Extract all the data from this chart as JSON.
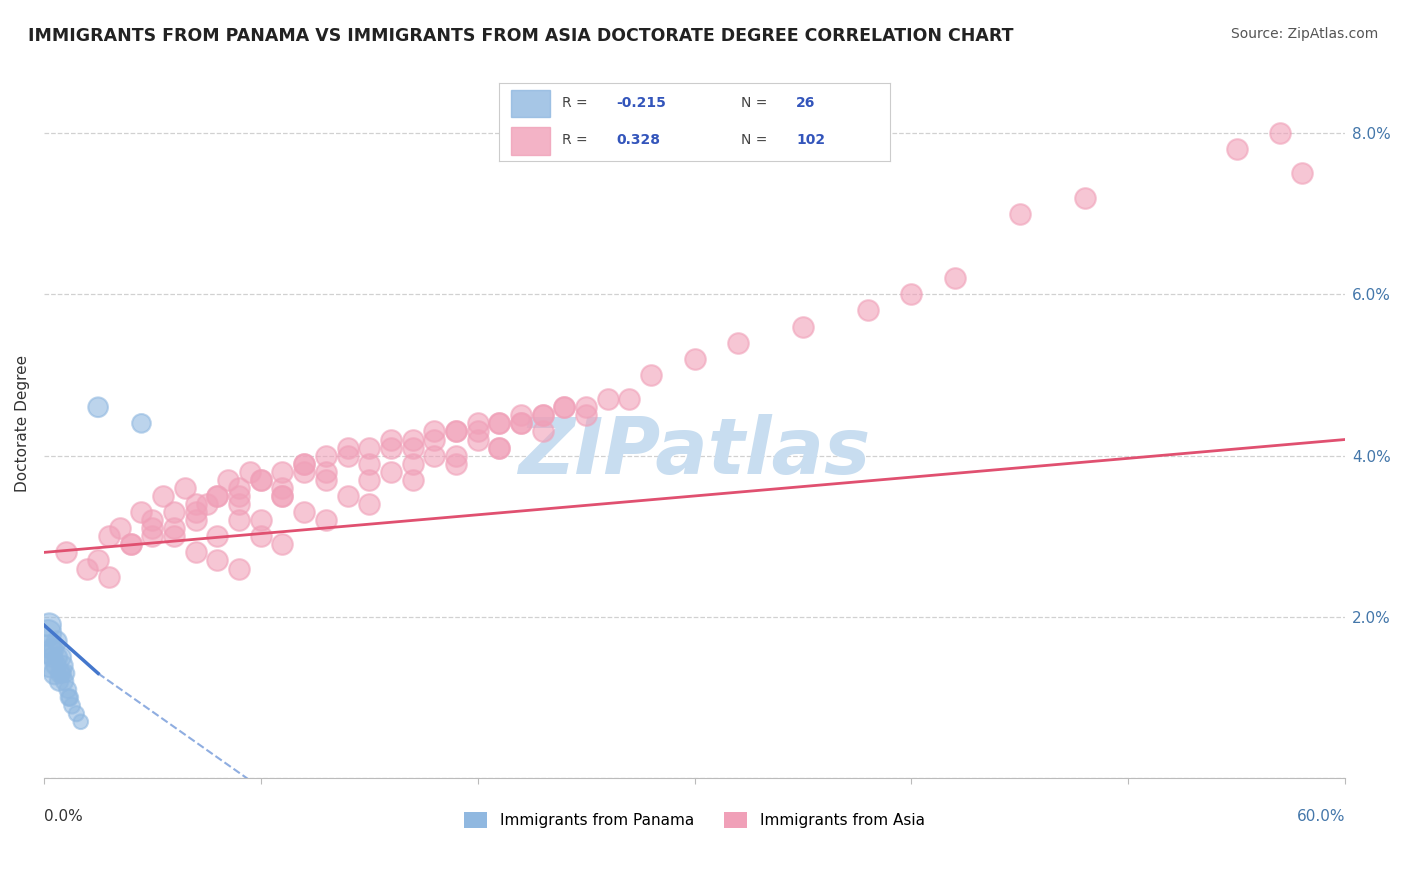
{
  "title": "IMMIGRANTS FROM PANAMA VS IMMIGRANTS FROM ASIA DOCTORATE DEGREE CORRELATION CHART",
  "source": "Source: ZipAtlas.com",
  "ylabel": "Doctorate Degree",
  "y_ticks": [
    0.0,
    2.0,
    4.0,
    6.0,
    8.0
  ],
  "y_tick_labels": [
    "",
    "2.0%",
    "4.0%",
    "6.0%",
    "8.0%"
  ],
  "x_range": [
    0.0,
    60.0
  ],
  "y_range": [
    0.0,
    8.8
  ],
  "legend_r_panama": "-0.215",
  "legend_n_panama": "26",
  "legend_r_asia": "0.328",
  "legend_n_asia": "102",
  "panama_color": "#90b8e0",
  "asia_color": "#f0a0b8",
  "panama_line_color": "#4477cc",
  "asia_line_color": "#e05070",
  "watermark_color": "#c8ddf0",
  "background_color": "#ffffff",
  "panama_x": [
    0.15,
    0.3,
    0.4,
    0.5,
    0.6,
    0.7,
    0.8,
    0.9,
    1.0,
    1.1,
    1.2,
    1.3,
    1.5,
    1.7,
    0.2,
    0.35,
    0.55,
    0.75,
    0.95,
    1.15,
    0.25,
    0.45,
    0.65,
    0.85,
    2.5,
    4.5
  ],
  "panama_y": [
    1.6,
    1.4,
    1.5,
    1.3,
    1.7,
    1.2,
    1.5,
    1.4,
    1.3,
    1.1,
    1.0,
    0.9,
    0.8,
    0.7,
    1.8,
    1.6,
    1.4,
    1.3,
    1.2,
    1.0,
    1.9,
    1.6,
    1.5,
    1.3,
    4.6,
    4.4
  ],
  "panama_sizes": [
    400,
    300,
    200,
    250,
    200,
    180,
    200,
    180,
    160,
    150,
    140,
    130,
    120,
    110,
    350,
    220,
    200,
    180,
    160,
    140,
    280,
    200,
    180,
    160,
    200,
    180
  ],
  "asia_x": [
    1.0,
    2.0,
    3.0,
    4.0,
    5.0,
    6.0,
    7.0,
    8.0,
    9.0,
    10.0,
    2.5,
    3.5,
    4.5,
    5.5,
    6.5,
    7.5,
    8.5,
    9.5,
    11.0,
    12.0,
    3.0,
    5.0,
    7.0,
    9.0,
    11.0,
    13.0,
    15.0,
    17.0,
    19.0,
    21.0,
    4.0,
    6.0,
    8.0,
    10.0,
    12.0,
    14.0,
    16.0,
    18.0,
    20.0,
    22.0,
    5.0,
    7.0,
    9.0,
    11.0,
    13.0,
    15.0,
    17.0,
    19.0,
    21.0,
    23.0,
    6.0,
    8.0,
    10.0,
    12.0,
    14.0,
    16.0,
    18.0,
    20.0,
    22.0,
    24.0,
    7.0,
    9.0,
    11.0,
    13.0,
    15.0,
    17.0,
    19.0,
    21.0,
    23.0,
    25.0,
    8.0,
    10.0,
    12.0,
    14.0,
    16.0,
    18.0,
    20.0,
    22.0,
    24.0,
    26.0,
    9.0,
    11.0,
    13.0,
    15.0,
    17.0,
    19.0,
    21.0,
    23.0,
    25.0,
    27.0,
    28.0,
    30.0,
    32.0,
    35.0,
    38.0,
    40.0,
    42.0,
    45.0,
    48.0,
    55.0,
    58.0,
    57.0
  ],
  "asia_y": [
    2.8,
    2.6,
    3.0,
    2.9,
    3.2,
    3.1,
    3.3,
    3.0,
    3.4,
    3.2,
    2.7,
    3.1,
    3.3,
    3.5,
    3.6,
    3.4,
    3.7,
    3.8,
    3.5,
    3.9,
    2.5,
    3.0,
    3.2,
    3.5,
    3.6,
    3.8,
    3.7,
    3.9,
    4.0,
    4.1,
    2.9,
    3.3,
    3.5,
    3.7,
    3.8,
    4.0,
    4.1,
    4.2,
    4.3,
    4.4,
    3.1,
    3.4,
    3.6,
    3.8,
    4.0,
    4.1,
    4.2,
    4.3,
    4.4,
    4.5,
    3.0,
    3.5,
    3.7,
    3.9,
    4.1,
    4.2,
    4.3,
    4.4,
    4.5,
    4.6,
    2.8,
    3.2,
    3.5,
    3.7,
    3.9,
    4.1,
    4.3,
    4.4,
    4.5,
    4.6,
    2.7,
    3.0,
    3.3,
    3.5,
    3.8,
    4.0,
    4.2,
    4.4,
    4.6,
    4.7,
    2.6,
    2.9,
    3.2,
    3.4,
    3.7,
    3.9,
    4.1,
    4.3,
    4.5,
    4.7,
    5.0,
    5.2,
    5.4,
    5.6,
    5.8,
    6.0,
    6.2,
    7.0,
    7.2,
    7.8,
    7.5,
    8.0
  ]
}
